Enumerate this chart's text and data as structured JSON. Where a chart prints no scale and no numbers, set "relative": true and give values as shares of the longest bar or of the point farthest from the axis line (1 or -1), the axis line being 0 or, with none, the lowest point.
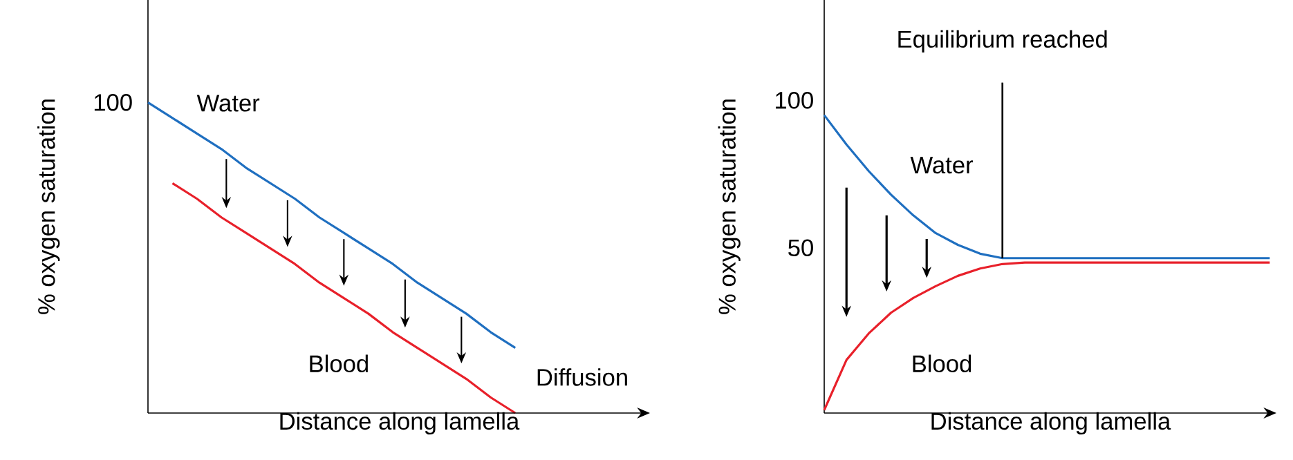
{
  "chart_data": [
    {
      "type": "line",
      "relative": true,
      "xlabel": "Distance along lamella",
      "ylabel": "% oxygen saturation",
      "categories": [
        null,
        null,
        null,
        null,
        null,
        null,
        null,
        null,
        null,
        null,
        null,
        null,
        null,
        null,
        null,
        null
      ],
      "annotations": [
        "100",
        "Diffusion"
      ],
      "series": [
        {
          "name": "Water",
          "color": "#1f6fc0",
          "values": [
            1,
            0.95,
            0.9,
            0.85,
            0.79,
            0.74,
            0.69,
            0.63,
            0.58,
            0.53,
            0.48,
            0.42,
            0.37,
            0.32,
            0.26,
            0.21
          ]
        },
        {
          "name": "Blood",
          "color": "#e8202a",
          "values": [
            null,
            0.74,
            0.69,
            0.63,
            0.58,
            0.53,
            0.48,
            0.42,
            0.37,
            0.32,
            0.26,
            0.21,
            0.16,
            0.11,
            0.05,
            0
          ]
        }
      ]
    },
    {
      "type": "line",
      "xlabel": "Distance along lamella",
      "ylabel": "% oxygen saturation",
      "categories": [
        null,
        null,
        null,
        null,
        null,
        null,
        null,
        null,
        null,
        null,
        null,
        null,
        null,
        null,
        null,
        null,
        null,
        null,
        null,
        null,
        null
      ],
      "ylim": [
        -6,
        134
      ],
      "yticks": [
        50,
        100
      ],
      "annotations": [
        {
          "text": "Equilibrium reached",
          "y": 46.5
        }
      ],
      "series": [
        {
          "name": "Water",
          "color": "#1f6fc0",
          "values": [
            95,
            85,
            76,
            68,
            61,
            55,
            51,
            48,
            46.5,
            46.5,
            46.5,
            46.5,
            46.5,
            46.5,
            46.5,
            46.5,
            46.5,
            46.5,
            46.5,
            46.5,
            46.5
          ]
        },
        {
          "name": "Blood",
          "color": "#e8202a",
          "values": [
            -5,
            12,
            21,
            28,
            33,
            37,
            40.5,
            43,
            44.5,
            45,
            45,
            45,
            45,
            45,
            45,
            45,
            45,
            45,
            45,
            45,
            45
          ]
        }
      ]
    }
  ]
}
